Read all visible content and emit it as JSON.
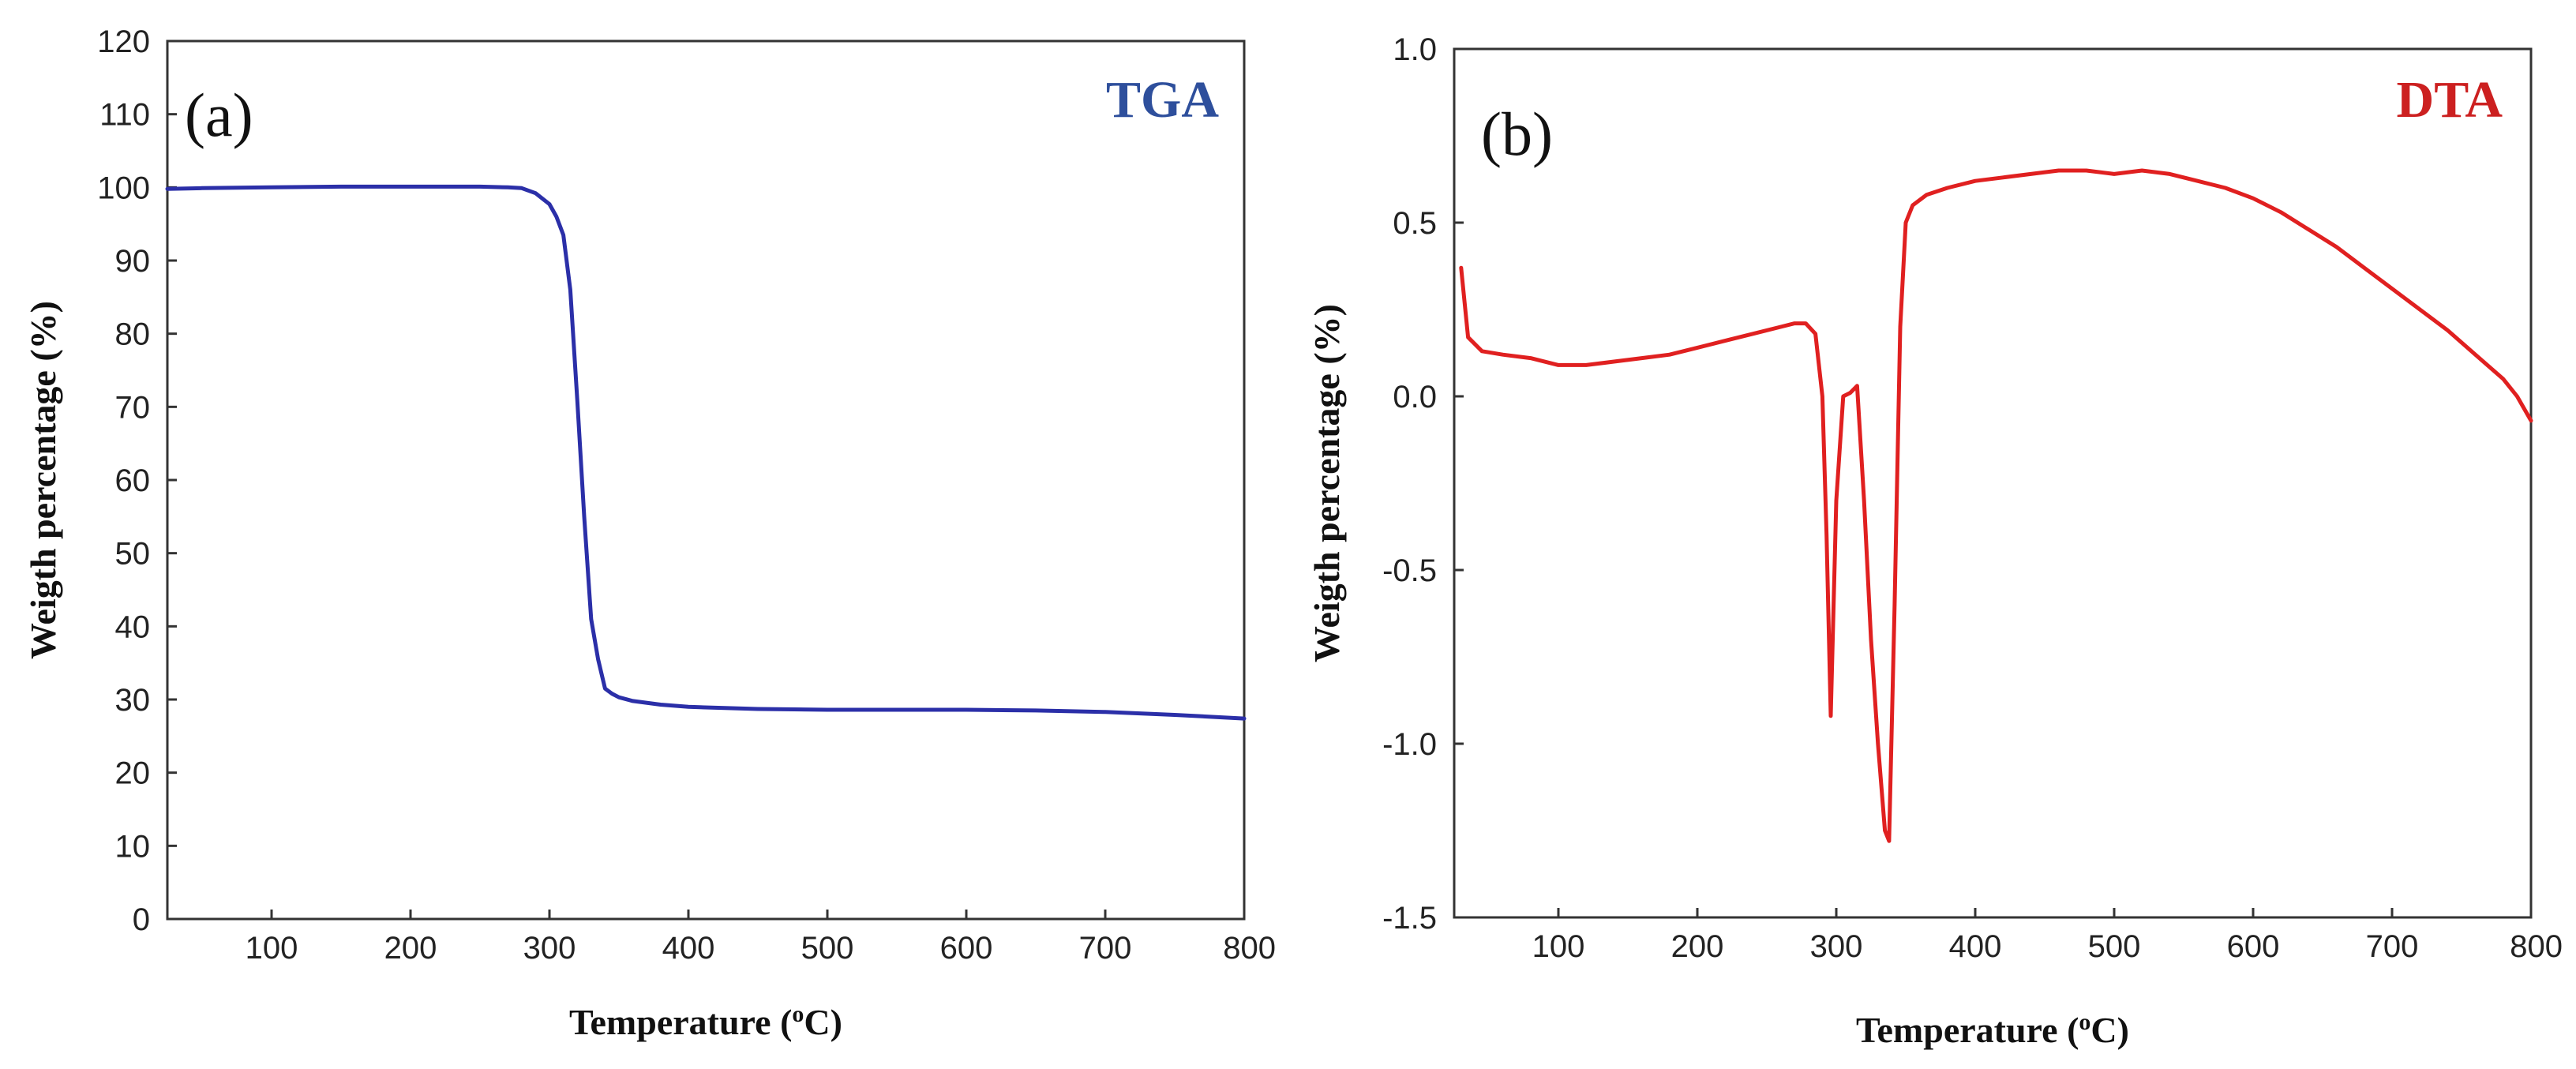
{
  "chart_data": [
    {
      "type": "line",
      "panel_label": "(a)",
      "series_label": "TGA",
      "xlabel": "Temperature (",
      "xlabel_sup": "o",
      "xlabel_end": "C)",
      "ylabel": "Weigth percentage (%)",
      "xlim": [
        25,
        800
      ],
      "ylim": [
        0,
        120
      ],
      "xticks": [
        100,
        200,
        300,
        400,
        500,
        600,
        700,
        800
      ],
      "yticks": [
        0,
        10,
        20,
        30,
        40,
        50,
        60,
        70,
        80,
        90,
        100,
        110,
        120
      ],
      "grid": false,
      "color": "#2b2fa8",
      "label_color": "#2e4f9c",
      "series": [
        {
          "x": [
            25,
            50,
            100,
            150,
            200,
            250,
            270,
            280,
            290,
            300,
            305,
            310,
            315,
            320,
            325,
            330,
            335,
            340,
            345,
            350,
            360,
            380,
            400,
            450,
            500,
            550,
            600,
            650,
            700,
            750,
            800
          ],
          "y": [
            99.8,
            99.9,
            100.0,
            100.1,
            100.1,
            100.1,
            100.0,
            99.9,
            99.2,
            97.7,
            96.0,
            93.5,
            86.0,
            71.0,
            55.0,
            41.0,
            35.5,
            31.5,
            30.8,
            30.3,
            29.8,
            29.3,
            29.0,
            28.7,
            28.6,
            28.6,
            28.6,
            28.5,
            28.3,
            27.9,
            27.4
          ]
        }
      ]
    },
    {
      "type": "line",
      "panel_label": "(b)",
      "series_label": "DTA",
      "xlabel": "Temperature (",
      "xlabel_sup": "o",
      "xlabel_end": "C)",
      "ylabel": "Weigth percentage (%)",
      "xlim": [
        25,
        800
      ],
      "ylim": [
        -1.5,
        1.0
      ],
      "xticks": [
        100,
        200,
        300,
        400,
        500,
        600,
        700,
        800
      ],
      "yticks": [
        -1.5,
        -1.0,
        -0.5,
        0.0,
        0.5,
        1.0
      ],
      "ytick_labels": [
        "-1.5",
        "-1.0",
        "-0.5",
        "0.0",
        "0.5",
        "1.0"
      ],
      "grid": false,
      "color": "#e02020",
      "label_color": "#cc2020",
      "series": [
        {
          "x": [
            30,
            35,
            45,
            60,
            80,
            100,
            120,
            140,
            160,
            180,
            200,
            220,
            240,
            260,
            270,
            278,
            285,
            290,
            293,
            296,
            300,
            305,
            310,
            315,
            320,
            325,
            330,
            335,
            338,
            342,
            346,
            350,
            355,
            365,
            380,
            400,
            420,
            440,
            460,
            480,
            500,
            520,
            540,
            560,
            580,
            600,
            620,
            640,
            660,
            680,
            700,
            720,
            740,
            760,
            780,
            790,
            800
          ],
          "y": [
            0.37,
            0.17,
            0.13,
            0.12,
            0.11,
            0.09,
            0.09,
            0.1,
            0.11,
            0.12,
            0.14,
            0.16,
            0.18,
            0.2,
            0.21,
            0.21,
            0.18,
            0.0,
            -0.4,
            -0.92,
            -0.3,
            0.0,
            0.01,
            0.03,
            -0.3,
            -0.7,
            -1.0,
            -1.25,
            -1.28,
            -0.6,
            0.2,
            0.5,
            0.55,
            0.58,
            0.6,
            0.62,
            0.63,
            0.64,
            0.65,
            0.65,
            0.64,
            0.65,
            0.64,
            0.62,
            0.6,
            0.57,
            0.53,
            0.48,
            0.43,
            0.37,
            0.31,
            0.25,
            0.19,
            0.12,
            0.05,
            0.0,
            -0.07
          ]
        }
      ]
    }
  ]
}
